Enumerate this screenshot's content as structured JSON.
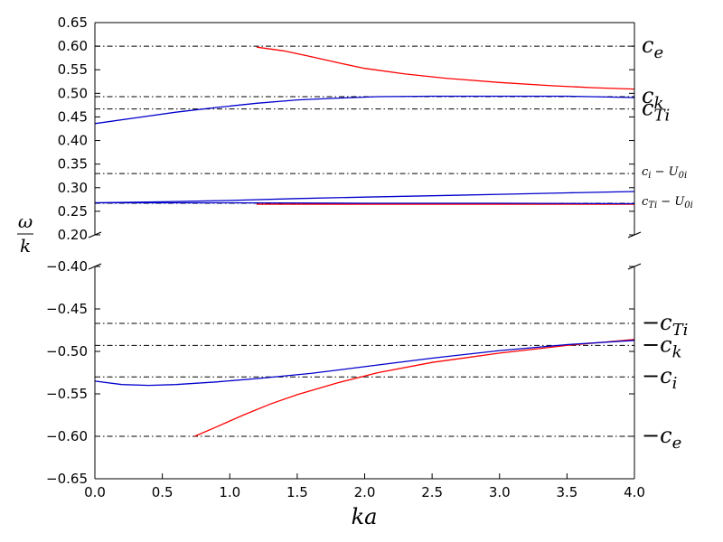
{
  "chart_data": {
    "type": "line",
    "title": "",
    "xlabel": "ka",
    "ylabel": {
      "numerator": "ω",
      "denominator": "k"
    },
    "xlim": [
      0.0,
      4.0
    ],
    "x_ticks": [
      "0.0",
      "0.5",
      "1.0",
      "1.5",
      "2.0",
      "2.5",
      "3.0",
      "3.5",
      "4.0"
    ],
    "grid": false,
    "broken_y_axis": true,
    "panels": [
      {
        "name": "upper",
        "ylim": [
          0.2,
          0.65
        ],
        "y_ticks": [
          "0.20",
          "0.25",
          "0.30",
          "0.35",
          "0.40",
          "0.45",
          "0.50",
          "0.55",
          "0.60",
          "0.65"
        ],
        "reference_lines": [
          {
            "y": 0.6,
            "base": "c",
            "sub": "e",
            "minus": "",
            "size": "large"
          },
          {
            "y": 0.493,
            "base": "c",
            "sub": "k",
            "minus": "",
            "size": "large"
          },
          {
            "y": 0.467,
            "base": "c",
            "sub": "Ti",
            "minus": "",
            "size": "large"
          },
          {
            "y": 0.33,
            "base": "c",
            "sub": "i",
            "minus": "",
            "suffix": " − U",
            "suffix_sub": "0i",
            "size": "small"
          },
          {
            "y": 0.267,
            "base": "c",
            "sub": "Ti",
            "minus": "",
            "suffix": " − U",
            "suffix_sub": "0i",
            "size": "small"
          }
        ],
        "series": [
          {
            "color": "#ff0000",
            "x": [
              1.2,
              1.4,
              1.6,
              1.8,
              2.0,
              2.3,
              2.6,
              3.0,
              3.4,
              3.7,
              4.0
            ],
            "y": [
              0.598,
              0.59,
              0.578,
              0.565,
              0.553,
              0.541,
              0.532,
              0.523,
              0.516,
              0.512,
              0.509
            ]
          },
          {
            "color": "#0000cc",
            "x": [
              0.0,
              0.3,
              0.6,
              0.9,
              1.2,
              1.5,
              1.8,
              2.1,
              2.5,
              3.0,
              3.5,
              4.0
            ],
            "y": [
              0.436,
              0.448,
              0.46,
              0.47,
              0.479,
              0.486,
              0.49,
              0.493,
              0.494,
              0.494,
              0.494,
              0.491
            ]
          },
          {
            "color": "#ff0000",
            "x": [
              1.2,
              2.0,
              3.0,
              4.0
            ],
            "y": [
              0.265,
              0.265,
              0.265,
              0.265
            ]
          },
          {
            "color": "#0000cc",
            "x": [
              0.0,
              0.5,
              1.0,
              1.5,
              2.0,
              2.5,
              3.0,
              3.5,
              4.0
            ],
            "y": [
              0.268,
              0.27,
              0.273,
              0.277,
              0.28,
              0.283,
              0.286,
              0.289,
              0.292
            ]
          },
          {
            "color": "#0000cc",
            "x": [
              0.0,
              1.0,
              2.0,
              3.0,
              4.0
            ],
            "y": [
              0.268,
              0.268,
              0.267,
              0.267,
              0.266
            ]
          }
        ]
      },
      {
        "name": "lower",
        "ylim": [
          -0.65,
          -0.4
        ],
        "y_ticks": [
          "−0.65",
          "−0.60",
          "−0.55",
          "−0.50",
          "−0.45",
          "−0.40"
        ],
        "reference_lines": [
          {
            "y": -0.467,
            "base": "c",
            "sub": "Ti",
            "minus": "−",
            "size": "large"
          },
          {
            "y": -0.493,
            "base": "c",
            "sub": "k",
            "minus": "−",
            "size": "large"
          },
          {
            "y": -0.53,
            "base": "c",
            "sub": "i",
            "minus": "−",
            "size": "large"
          },
          {
            "y": -0.6,
            "base": "c",
            "sub": "e",
            "minus": "−",
            "size": "large"
          }
        ],
        "series": [
          {
            "color": "#ff0000",
            "x": [
              0.74,
              0.9,
              1.1,
              1.3,
              1.5,
              1.8,
              2.1,
              2.5,
              3.0,
              3.5,
              4.0
            ],
            "y": [
              -0.6,
              -0.589,
              -0.575,
              -0.562,
              -0.551,
              -0.537,
              -0.525,
              -0.513,
              -0.502,
              -0.493,
              -0.486
            ]
          },
          {
            "color": "#0000cc",
            "x": [
              0.0,
              0.2,
              0.4,
              0.6,
              0.9,
              1.2,
              1.6,
              2.0,
              2.5,
              3.0,
              3.5,
              4.0
            ],
            "y": [
              -0.535,
              -0.539,
              -0.54,
              -0.539,
              -0.536,
              -0.532,
              -0.526,
              -0.518,
              -0.508,
              -0.499,
              -0.492,
              -0.487
            ]
          }
        ]
      }
    ]
  }
}
